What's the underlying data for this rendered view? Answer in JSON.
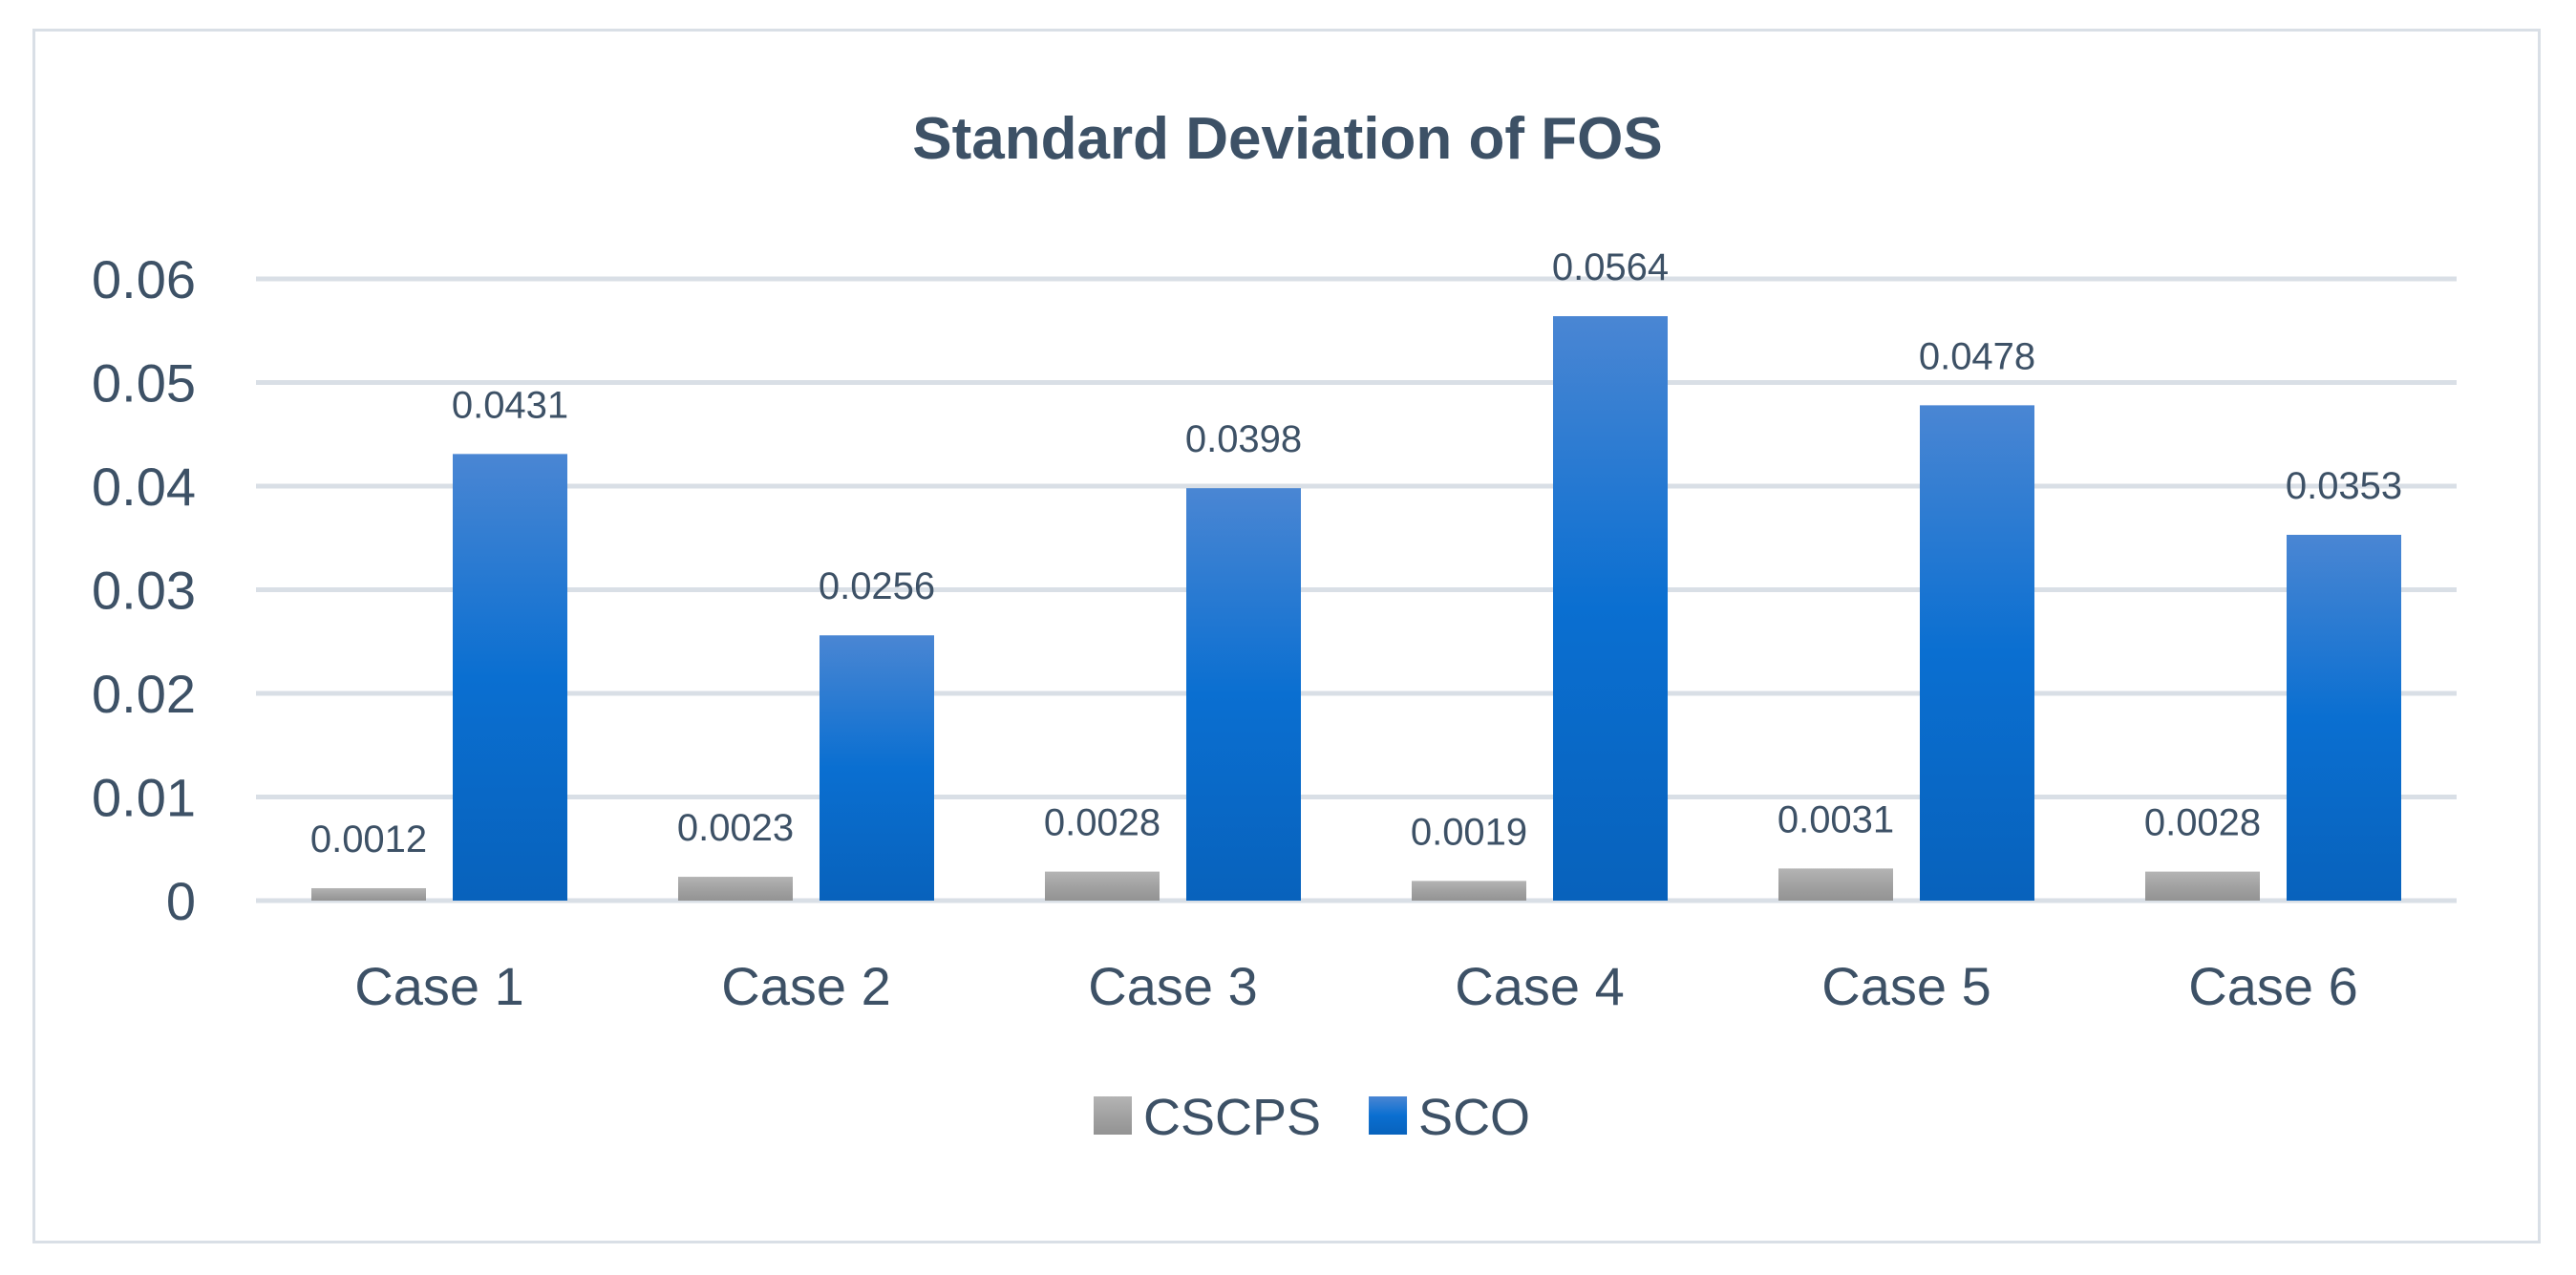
{
  "chart_data": {
    "type": "bar",
    "title": "Standard Deviation of FOS",
    "xlabel": "",
    "ylabel": "",
    "ylim": [
      0,
      0.06
    ],
    "yticks": [
      "0",
      "0.01",
      "0.02",
      "0.03",
      "0.04",
      "0.05",
      "0.06"
    ],
    "grid": true,
    "legend_position": "bottom",
    "categories": [
      "Case 1",
      "Case 2",
      "Case 3",
      "Case 4",
      "Case 5",
      "Case 6"
    ],
    "series": [
      {
        "name": "CSCPS",
        "color": "#a6a6a6",
        "values": [
          0.0012,
          0.0023,
          0.0028,
          0.0019,
          0.0031,
          0.0028
        ],
        "labels": [
          "0.0012",
          "0.0023",
          "0.0028",
          "0.0019",
          "0.0031",
          "0.0028"
        ]
      },
      {
        "name": "SCO",
        "color": "#0a6fd1",
        "values": [
          0.0431,
          0.0256,
          0.0398,
          0.0564,
          0.0478,
          0.0353
        ],
        "labels": [
          "0.0431",
          "0.0256",
          "0.0398",
          "0.0564",
          "0.0478",
          "0.0353"
        ]
      }
    ]
  }
}
